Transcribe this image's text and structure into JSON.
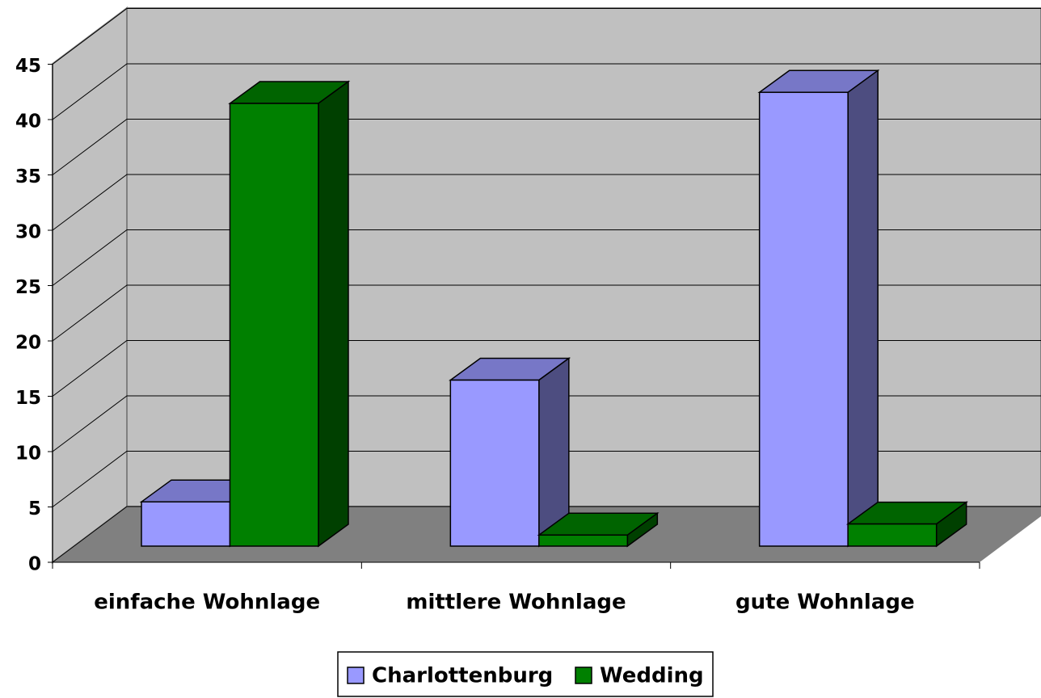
{
  "chart_data": {
    "type": "bar3d",
    "categories": [
      "einfache Wohnlage",
      "mittlere Wohnlage",
      "gute Wohnlage"
    ],
    "series": [
      {
        "name": "Charlottenburg",
        "color": "#9999ff",
        "values": [
          4,
          15,
          41
        ]
      },
      {
        "name": "Wedding",
        "color": "#008000",
        "values": [
          40,
          1,
          2
        ]
      }
    ],
    "ylim": [
      0,
      45
    ],
    "yticks": [
      0,
      5,
      10,
      15,
      20,
      25,
      30,
      35,
      40,
      45
    ],
    "grid": true,
    "legend": "bottom"
  }
}
